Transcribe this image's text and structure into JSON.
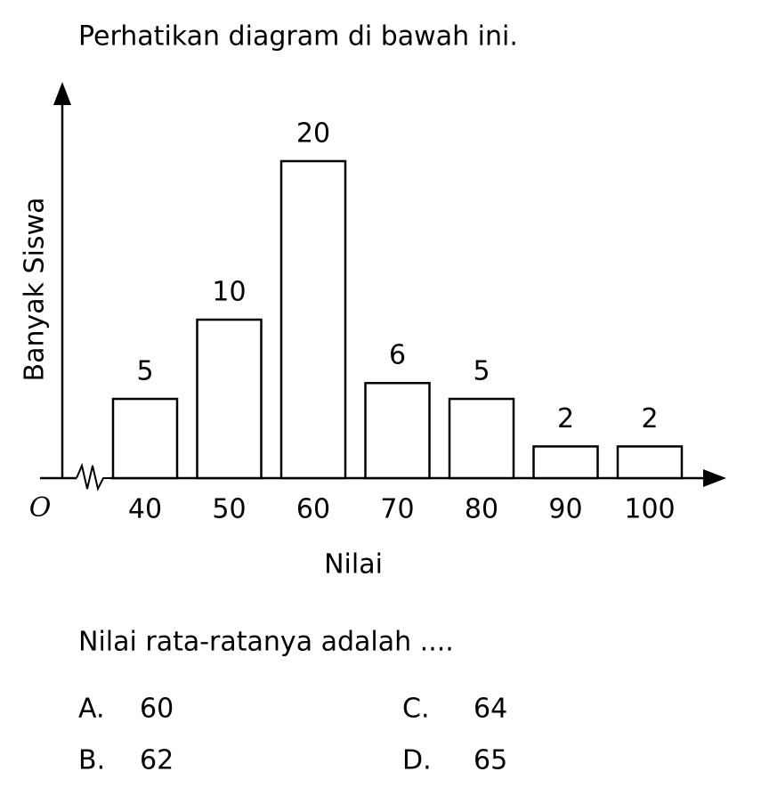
{
  "question": "Perhatikan diagram di bawah ini.",
  "chart_data": {
    "type": "bar",
    "x_label": "Nilai",
    "y_label": "Banyak Siswa",
    "origin_label": "O",
    "categories": [
      "40",
      "50",
      "60",
      "70",
      "80",
      "90",
      "100"
    ],
    "values": [
      5,
      10,
      20,
      6,
      5,
      2,
      2
    ],
    "color": "#ffffff",
    "ylim": [
      0,
      25
    ]
  },
  "prompt": "Nilai rata-ratanya adalah ....",
  "options": [
    {
      "letter": "A.",
      "text": "60"
    },
    {
      "letter": "B.",
      "text": "62"
    },
    {
      "letter": "C.",
      "text": "64"
    },
    {
      "letter": "D.",
      "text": "65"
    }
  ]
}
